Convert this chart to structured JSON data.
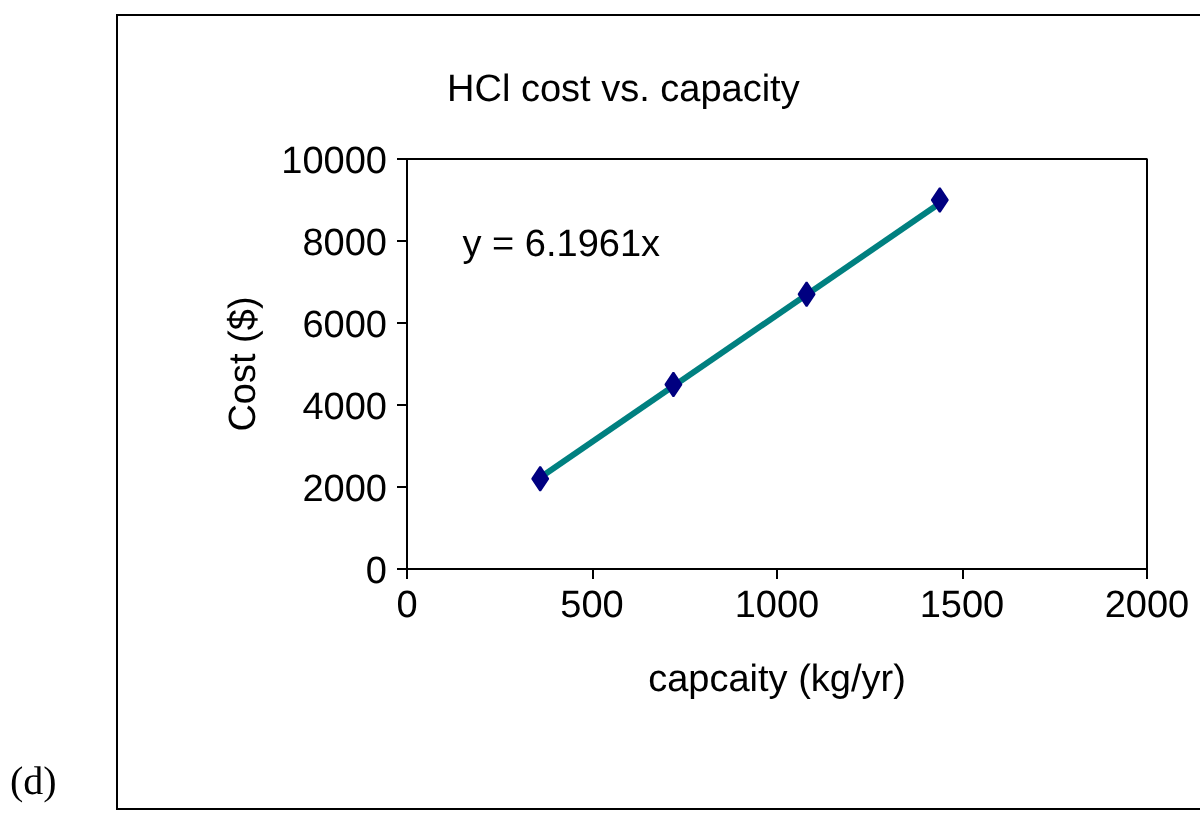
{
  "chart_data": {
    "type": "scatter",
    "title": "HCl cost vs. capacity",
    "xlabel": "capcaity (kg/yr)",
    "ylabel": "Cost ($)",
    "x": [
      360,
      720,
      1080,
      1440
    ],
    "series": [
      {
        "color": "#000080",
        "marker": "diamond",
        "values": [
          2200,
          4500,
          6700,
          9000
        ]
      },
      {
        "type": "line",
        "color": "#008080",
        "x": [
          360,
          1440
        ],
        "values": [
          2230,
          8920
        ]
      }
    ],
    "xlim": [
      0,
      2000
    ],
    "xticks": [
      0,
      500,
      1000,
      1500,
      2000
    ],
    "ylim": [
      0,
      10000
    ],
    "yticks": [
      0,
      2000,
      4000,
      6000,
      8000,
      10000
    ],
    "annotations": [
      "y = 6.1961x",
      "(d)"
    ]
  }
}
